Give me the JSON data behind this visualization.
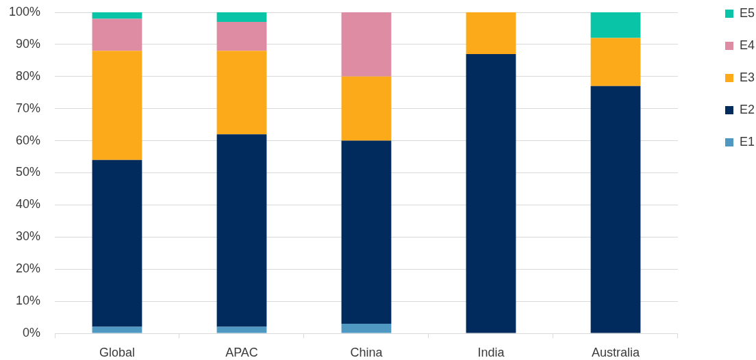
{
  "chart_data": {
    "type": "bar",
    "stacked": true,
    "categories": [
      "Global",
      "APAC",
      "China",
      "India",
      "Australia"
    ],
    "series": [
      {
        "name": "E1",
        "color": "#4f98c2",
        "values": [
          2,
          2,
          3,
          0,
          0
        ]
      },
      {
        "name": "E2",
        "color": "#002b5c",
        "values": [
          52,
          60,
          57,
          87,
          77
        ]
      },
      {
        "name": "E3",
        "color": "#fdaa1a",
        "values": [
          34,
          26,
          20,
          13,
          15
        ]
      },
      {
        "name": "E4",
        "color": "#de8ba4",
        "values": [
          10,
          9,
          20,
          0,
          0
        ]
      },
      {
        "name": "E5",
        "color": "#0ac4a7",
        "values": [
          2,
          3,
          0,
          0,
          8
        ]
      }
    ],
    "ylim": [
      0,
      100
    ],
    "yticks": [
      {
        "value": 0,
        "label": "0%"
      },
      {
        "value": 10,
        "label": "10%"
      },
      {
        "value": 20,
        "label": "20%"
      },
      {
        "value": 30,
        "label": "30%"
      },
      {
        "value": 40,
        "label": "40%"
      },
      {
        "value": 50,
        "label": "50%"
      },
      {
        "value": 60,
        "label": "60%"
      },
      {
        "value": 70,
        "label": "70%"
      },
      {
        "value": 80,
        "label": "80%"
      },
      {
        "value": 90,
        "label": "90%"
      },
      {
        "value": 100,
        "label": "100%"
      }
    ],
    "grid": "y",
    "legend": "top right"
  }
}
